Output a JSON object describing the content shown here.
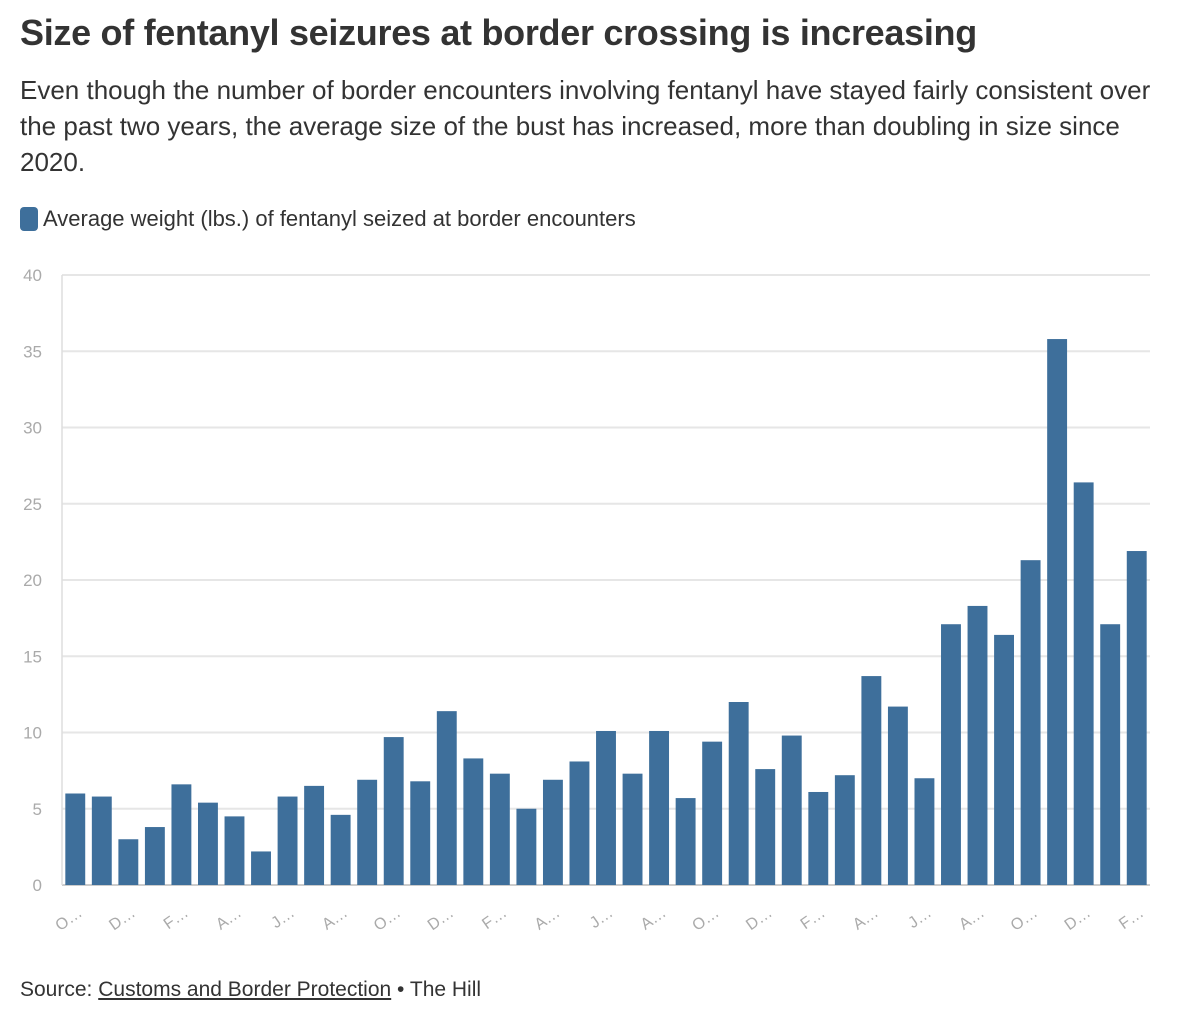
{
  "header": {
    "title": "Size of fentanyl seizures at border crossing is increasing",
    "subtitle": "Even though the number of border encounters involving fentanyl have stayed fairly consistent over the past two years, the average size of the bust has increased, more than doubling in size since 2020."
  },
  "legend": {
    "label": "Average weight (lbs.) of fentanyl seized at border encounters",
    "color": "#3e6f9b"
  },
  "footer": {
    "source_prefix": "Source:",
    "source_link": "Customs and Border Protection",
    "separator": "•",
    "publisher": "The Hill"
  },
  "chart_data": {
    "type": "bar",
    "title": "Size of fentanyl seizures at border crossing is increasing",
    "xlabel": "",
    "ylabel": "",
    "ylim": [
      0,
      40
    ],
    "yticks": [
      0,
      5,
      10,
      15,
      20,
      25,
      30,
      35,
      40
    ],
    "grid": true,
    "bar_color": "#3e6f9b",
    "tick_labels": [
      "O…",
      "D…",
      "F…",
      "A…",
      "J…",
      "A…",
      "O…",
      "D…",
      "F…",
      "A…",
      "J…",
      "A…",
      "O…",
      "D…",
      "F…",
      "A…",
      "J…",
      "A…",
      "O…",
      "D…",
      "F…"
    ],
    "tick_every": 2,
    "series": [
      {
        "name": "Average weight (lbs.) of fentanyl seized at border encounters",
        "values": [
          6.0,
          5.8,
          3.0,
          3.8,
          6.6,
          5.4,
          4.5,
          2.2,
          5.8,
          6.5,
          4.6,
          6.9,
          9.7,
          6.8,
          11.4,
          8.3,
          7.3,
          5.0,
          6.9,
          8.1,
          10.1,
          7.3,
          10.1,
          5.7,
          9.4,
          12.0,
          7.6,
          9.8,
          6.1,
          7.2,
          13.7,
          11.7,
          7.0,
          17.1,
          18.3,
          16.4,
          21.3,
          35.8,
          26.4,
          17.1,
          21.9
        ]
      }
    ]
  }
}
